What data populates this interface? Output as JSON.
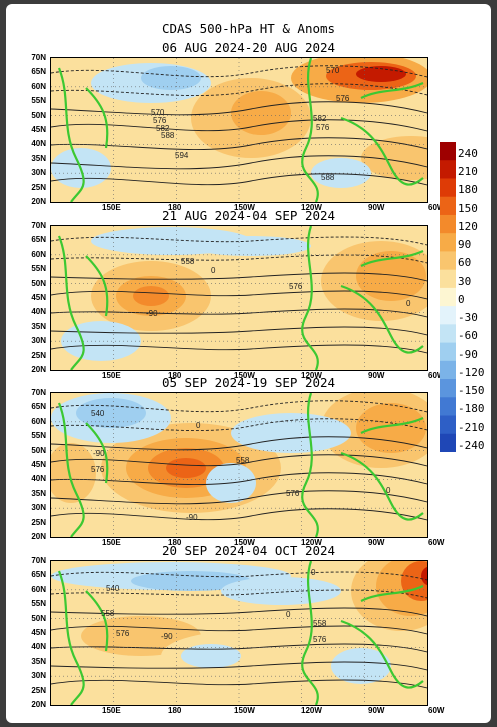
{
  "title": "CDAS 500-hPa HT & Anoms",
  "panels": [
    {
      "date": "06 AUG 2024-20 AUG 2024",
      "contour_labels": [
        "570",
        "576",
        "582",
        "588",
        "594",
        "576",
        "582",
        "588",
        "570",
        "576"
      ]
    },
    {
      "date": "21 AUG 2024-04 SEP 2024",
      "contour_labels": [
        "558",
        "576",
        "0",
        "-90",
        "0"
      ]
    },
    {
      "date": "05 SEP 2024-19 SEP 2024",
      "contour_labels": [
        "540",
        "0",
        "558",
        "576",
        "-90",
        "-90",
        "576",
        "0"
      ]
    },
    {
      "date": "20 SEP 2024-04 OCT 2024",
      "contour_labels": [
        "540",
        "558",
        "576",
        "0",
        "-90",
        "0",
        "558",
        "576"
      ]
    }
  ],
  "lat_labels": [
    "70N",
    "65N",
    "60N",
    "55N",
    "50N",
    "45N",
    "40N",
    "35N",
    "30N",
    "25N",
    "20N"
  ],
  "lon_labels": [
    "150E",
    "180",
    "150W",
    "120W",
    "90W",
    "60W"
  ],
  "colorbar": {
    "labels": [
      "240",
      "210",
      "180",
      "150",
      "120",
      "90",
      "60",
      "30",
      "0",
      "-30",
      "-60",
      "-90",
      "-120",
      "-150",
      "-180",
      "-210",
      "-240"
    ],
    "colors": [
      "#9e0000",
      "#c41a00",
      "#de3b06",
      "#ec6416",
      "#f38a2b",
      "#f7ab47",
      "#f9c56e",
      "#fbe09d",
      "#fdf6d2",
      "#e3f3fb",
      "#c3e4f5",
      "#9fcff0",
      "#7bb3e8",
      "#5b95de",
      "#4179d3",
      "#2e5fc6",
      "#1f47b6"
    ]
  }
}
